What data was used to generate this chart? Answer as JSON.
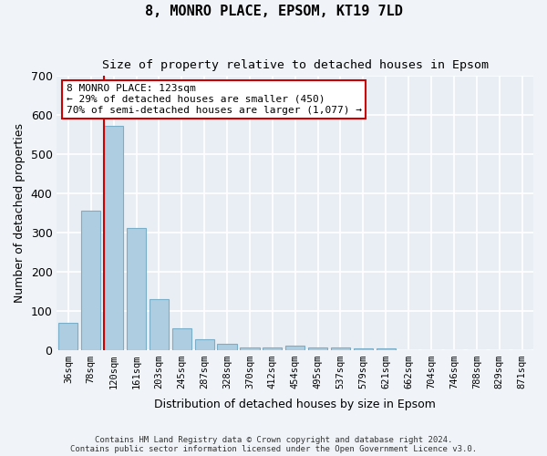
{
  "title": "8, MONRO PLACE, EPSOM, KT19 7LD",
  "subtitle": "Size of property relative to detached houses in Epsom",
  "xlabel": "Distribution of detached houses by size in Epsom",
  "ylabel": "Number of detached properties",
  "categories": [
    "36sqm",
    "78sqm",
    "120sqm",
    "161sqm",
    "203sqm",
    "245sqm",
    "287sqm",
    "328sqm",
    "370sqm",
    "412sqm",
    "454sqm",
    "495sqm",
    "537sqm",
    "579sqm",
    "621sqm",
    "662sqm",
    "704sqm",
    "746sqm",
    "788sqm",
    "829sqm",
    "871sqm"
  ],
  "values": [
    68,
    355,
    572,
    312,
    130,
    55,
    26,
    15,
    7,
    5,
    10,
    5,
    5,
    4,
    3,
    0,
    0,
    0,
    0,
    0,
    0
  ],
  "bar_color": "#aecde1",
  "bar_edge_color": "#7aaec8",
  "property_line_index": 2,
  "property_line_color": "#cc0000",
  "annotation_line1": "8 MONRO PLACE: 123sqm",
  "annotation_line2": "← 29% of detached houses are smaller (450)",
  "annotation_line3": "70% of semi-detached houses are larger (1,077) →",
  "annotation_box_color": "#ffffff",
  "annotation_box_edge_color": "#cc0000",
  "ylim": [
    0,
    700
  ],
  "yticks": [
    0,
    100,
    200,
    300,
    400,
    500,
    600,
    700
  ],
  "fig_bg_color": "#f0f4f8",
  "ax_bg_color": "#e8eef4",
  "grid_color": "#ffffff",
  "footer_line1": "Contains HM Land Registry data © Crown copyright and database right 2024.",
  "footer_line2": "Contains public sector information licensed under the Open Government Licence v3.0."
}
